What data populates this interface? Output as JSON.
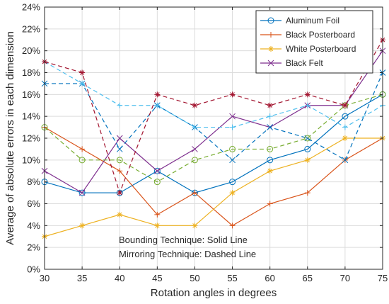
{
  "chart_data": {
    "type": "line",
    "title": "",
    "xlabel": "Rotation angles in degrees",
    "ylabel": "Average of absolute errors in each dimension",
    "x": [
      30,
      35,
      40,
      45,
      50,
      55,
      60,
      65,
      70,
      75
    ],
    "xlim": [
      30,
      75
    ],
    "ylim": [
      0,
      24
    ],
    "xticks": [
      "30",
      "35",
      "40",
      "45",
      "50",
      "55",
      "60",
      "65",
      "70",
      "75"
    ],
    "yticks": [
      "0%",
      "2%",
      "4%",
      "6%",
      "8%",
      "10%",
      "12%",
      "14%",
      "16%",
      "18%",
      "20%",
      "22%",
      "24%"
    ],
    "grid": true,
    "legend_position": "top-right",
    "series": [
      {
        "name": "Aluminum Foil",
        "technique": "solid",
        "color": "#0072BD",
        "marker": "circle",
        "values": [
          8,
          7,
          7,
          9,
          7,
          8,
          10,
          11,
          14,
          16
        ]
      },
      {
        "name": "Black Posterboard",
        "technique": "solid",
        "color": "#D95319",
        "marker": "plus",
        "values": [
          13,
          11,
          9,
          5,
          7,
          4,
          6,
          7,
          10,
          12
        ]
      },
      {
        "name": "White Posterboard",
        "technique": "solid",
        "color": "#EDB120",
        "marker": "star",
        "values": [
          3,
          4,
          5,
          4,
          4,
          7,
          9,
          10,
          12,
          12
        ]
      },
      {
        "name": "Black Felt",
        "technique": "solid",
        "color": "#7E2F8E",
        "marker": "x",
        "values": [
          9,
          7,
          12,
          9,
          11,
          14,
          13,
          15,
          15,
          20
        ]
      },
      {
        "technique": "dashed",
        "color": "#0072BD",
        "marker": "x",
        "values": [
          17,
          17,
          11,
          15,
          13,
          10,
          13,
          12,
          10,
          18
        ]
      },
      {
        "technique": "dashed",
        "color": "#4DBEEE",
        "marker": "plus",
        "values": [
          19,
          17,
          15,
          15,
          13,
          13,
          14,
          15,
          13,
          15
        ]
      },
      {
        "technique": "dashed",
        "color": "#77AC30",
        "marker": "circle",
        "values": [
          13,
          10,
          10,
          8,
          10,
          11,
          11,
          12,
          15,
          16
        ]
      },
      {
        "technique": "dashed",
        "color": "#A2142F",
        "marker": "star",
        "values": [
          19,
          18,
          7,
          16,
          15,
          16,
          15,
          16,
          15,
          21
        ]
      }
    ],
    "annotations": [
      "Bounding Technique: Solid Line",
      "Mirroring Technique: Dashed Line"
    ]
  }
}
